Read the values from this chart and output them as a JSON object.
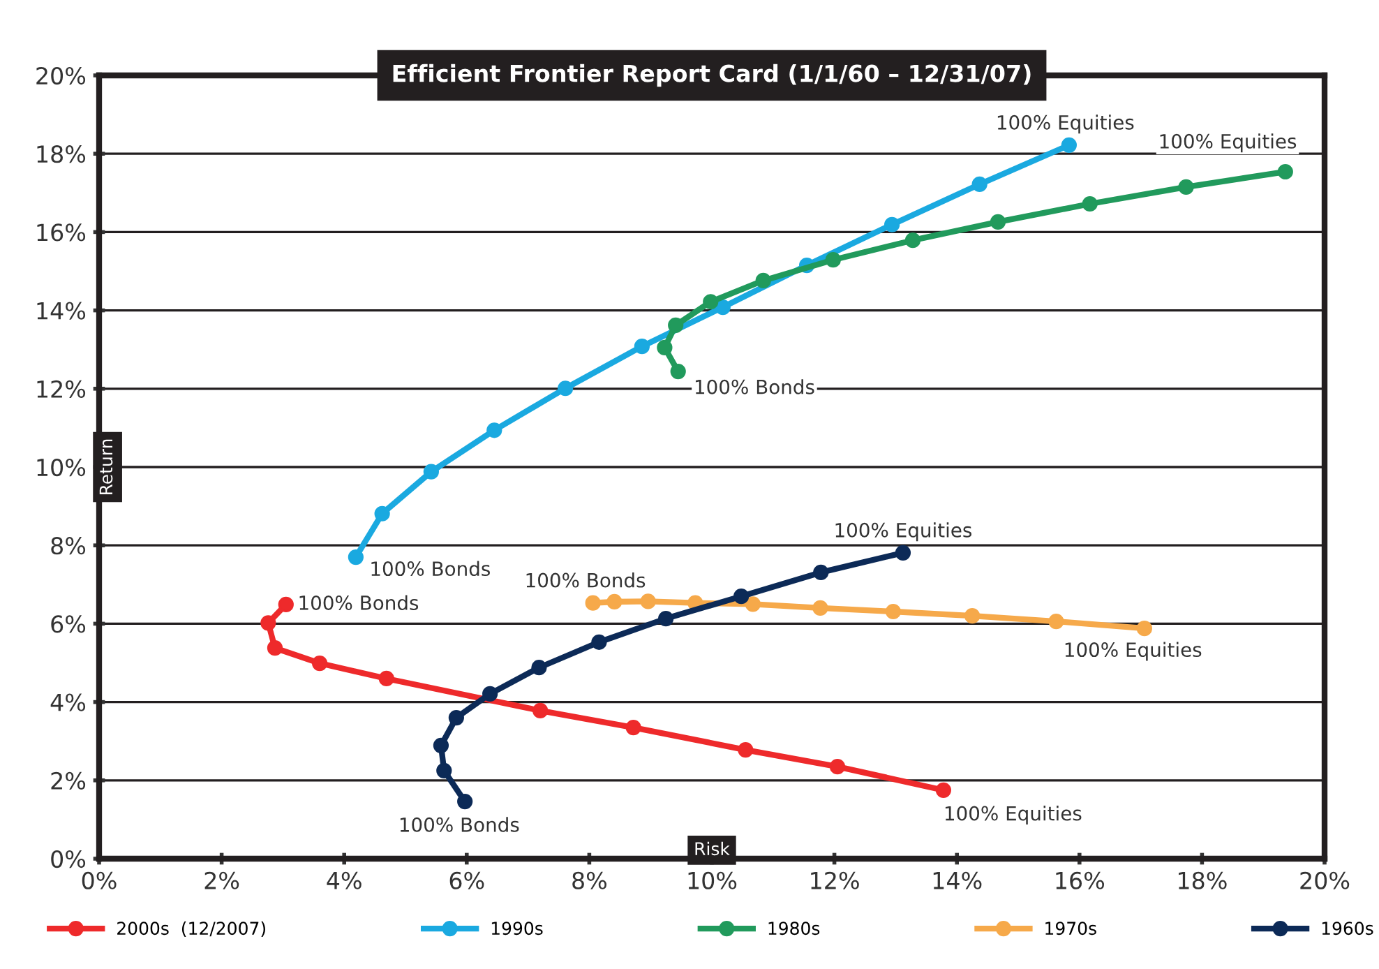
{
  "chart_data": {
    "type": "line",
    "title": "Efficient Frontier Report Card (1/1/60 – 12/31/07)",
    "xlabel": "Risk",
    "ylabel": "Return",
    "xlim": [
      0,
      20
    ],
    "ylim": [
      0,
      20
    ],
    "xticks": [
      {
        "value": 0,
        "label": "0%"
      },
      {
        "value": 2,
        "label": "2%"
      },
      {
        "value": 4,
        "label": "4%"
      },
      {
        "value": 6,
        "label": "6%"
      },
      {
        "value": 8,
        "label": "8%"
      },
      {
        "value": 10,
        "label": "10%"
      },
      {
        "value": 12,
        "label": "12%"
      },
      {
        "value": 14,
        "label": "14%"
      },
      {
        "value": 16,
        "label": "16%"
      },
      {
        "value": 18,
        "label": "18%"
      },
      {
        "value": 20,
        "label": "20%"
      }
    ],
    "yticks": [
      {
        "value": 0,
        "label": "0%"
      },
      {
        "value": 2,
        "label": "2%"
      },
      {
        "value": 4,
        "label": "4%"
      },
      {
        "value": 6,
        "label": "6%"
      },
      {
        "value": 8,
        "label": "8%"
      },
      {
        "value": 10,
        "label": "10%"
      },
      {
        "value": 12,
        "label": "12%"
      },
      {
        "value": 14,
        "label": "14%"
      },
      {
        "value": 16,
        "label": "16%"
      },
      {
        "value": 18,
        "label": "18%"
      },
      {
        "value": 20,
        "label": "20%"
      }
    ],
    "grid": "y",
    "legend": "bottom",
    "marker": "circle",
    "line_style": "solid",
    "series": [
      {
        "name": "2000s  (12/2007)",
        "color": "#ee2a2b",
        "x": [
          3.05,
          2.76,
          2.87,
          3.6,
          4.69,
          7.2,
          8.72,
          10.55,
          12.05,
          13.78
        ],
        "values": [
          6.49,
          6.02,
          5.38,
          4.99,
          4.6,
          3.78,
          3.35,
          2.78,
          2.35,
          1.75
        ]
      },
      {
        "name": "1990s",
        "color": "#1aa9e0",
        "x": [
          4.19,
          4.62,
          5.42,
          6.45,
          7.61,
          8.86,
          10.18,
          11.55,
          12.94,
          14.37,
          15.83
        ],
        "values": [
          7.7,
          8.81,
          9.88,
          10.94,
          12.01,
          13.08,
          14.08,
          15.15,
          16.19,
          17.22,
          18.22
        ]
      },
      {
        "name": "1980s",
        "color": "#219a5c",
        "x": [
          9.45,
          9.23,
          9.41,
          9.98,
          10.84,
          11.98,
          13.28,
          14.67,
          16.17,
          17.74,
          19.36
        ],
        "values": [
          12.44,
          13.05,
          13.62,
          14.22,
          14.76,
          15.29,
          15.79,
          16.26,
          16.72,
          17.15,
          17.54
        ]
      },
      {
        "name": "1970s",
        "color": "#f6a94a",
        "x": [
          8.06,
          8.41,
          8.96,
          9.73,
          10.67,
          11.77,
          12.96,
          14.25,
          15.62,
          17.06
        ],
        "values": [
          6.53,
          6.56,
          6.57,
          6.53,
          6.5,
          6.4,
          6.31,
          6.2,
          6.06,
          5.88
        ]
      },
      {
        "name": "1960s",
        "color": "#0c2a57",
        "x": [
          5.97,
          5.63,
          5.58,
          5.83,
          6.38,
          7.18,
          8.16,
          9.25,
          10.48,
          11.78,
          13.12
        ],
        "values": [
          1.46,
          2.25,
          2.89,
          3.6,
          4.21,
          4.88,
          5.53,
          6.13,
          6.7,
          7.31,
          7.81
        ]
      }
    ],
    "annotations": [
      {
        "text": "100% Bonds",
        "x": 3.05,
        "y": 6.49
      },
      {
        "text": "100% Equities",
        "x": 13.78,
        "y": 1.75
      },
      {
        "text": "100% Bonds",
        "x": 4.19,
        "y": 7.7
      },
      {
        "text": "100% Equities",
        "x": 15.83,
        "y": 18.22
      },
      {
        "text": "100% Bonds",
        "x": 9.45,
        "y": 12.44
      },
      {
        "text": "100% Equities",
        "x": 19.36,
        "y": 17.54
      },
      {
        "text": "100% Bonds",
        "x": 8.06,
        "y": 6.53
      },
      {
        "text": "100% Equities",
        "x": 17.06,
        "y": 5.88
      },
      {
        "text": "100% Bonds",
        "x": 5.97,
        "y": 1.46
      },
      {
        "text": "100% Equities",
        "x": 13.12,
        "y": 7.81
      }
    ]
  }
}
